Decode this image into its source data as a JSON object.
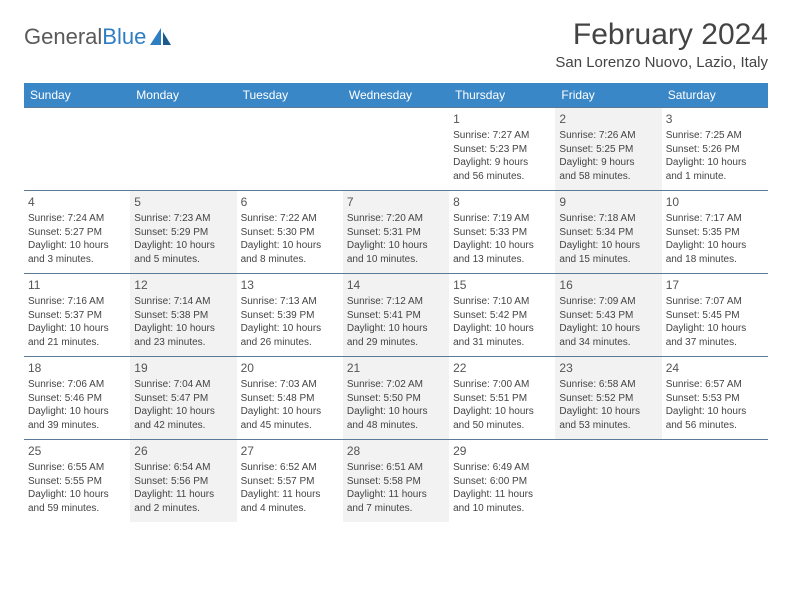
{
  "logo": {
    "text1": "General",
    "text2": "Blue"
  },
  "header": {
    "month_title": "February 2024",
    "location": "San Lorenzo Nuovo, Lazio, Italy"
  },
  "colors": {
    "header_bg": "#3a87c8",
    "alt_cell_bg": "#f2f2f2",
    "week_border": "#5a7a9a",
    "text": "#444444"
  },
  "day_names": [
    "Sunday",
    "Monday",
    "Tuesday",
    "Wednesday",
    "Thursday",
    "Friday",
    "Saturday"
  ],
  "weeks": [
    [
      null,
      null,
      null,
      null,
      {
        "num": "1",
        "sunrise": "Sunrise: 7:27 AM",
        "sunset": "Sunset: 5:23 PM",
        "day1": "Daylight: 9 hours",
        "day2": "and 56 minutes."
      },
      {
        "num": "2",
        "sunrise": "Sunrise: 7:26 AM",
        "sunset": "Sunset: 5:25 PM",
        "day1": "Daylight: 9 hours",
        "day2": "and 58 minutes."
      },
      {
        "num": "3",
        "sunrise": "Sunrise: 7:25 AM",
        "sunset": "Sunset: 5:26 PM",
        "day1": "Daylight: 10 hours",
        "day2": "and 1 minute."
      }
    ],
    [
      {
        "num": "4",
        "sunrise": "Sunrise: 7:24 AM",
        "sunset": "Sunset: 5:27 PM",
        "day1": "Daylight: 10 hours",
        "day2": "and 3 minutes."
      },
      {
        "num": "5",
        "sunrise": "Sunrise: 7:23 AM",
        "sunset": "Sunset: 5:29 PM",
        "day1": "Daylight: 10 hours",
        "day2": "and 5 minutes."
      },
      {
        "num": "6",
        "sunrise": "Sunrise: 7:22 AM",
        "sunset": "Sunset: 5:30 PM",
        "day1": "Daylight: 10 hours",
        "day2": "and 8 minutes."
      },
      {
        "num": "7",
        "sunrise": "Sunrise: 7:20 AM",
        "sunset": "Sunset: 5:31 PM",
        "day1": "Daylight: 10 hours",
        "day2": "and 10 minutes."
      },
      {
        "num": "8",
        "sunrise": "Sunrise: 7:19 AM",
        "sunset": "Sunset: 5:33 PM",
        "day1": "Daylight: 10 hours",
        "day2": "and 13 minutes."
      },
      {
        "num": "9",
        "sunrise": "Sunrise: 7:18 AM",
        "sunset": "Sunset: 5:34 PM",
        "day1": "Daylight: 10 hours",
        "day2": "and 15 minutes."
      },
      {
        "num": "10",
        "sunrise": "Sunrise: 7:17 AM",
        "sunset": "Sunset: 5:35 PM",
        "day1": "Daylight: 10 hours",
        "day2": "and 18 minutes."
      }
    ],
    [
      {
        "num": "11",
        "sunrise": "Sunrise: 7:16 AM",
        "sunset": "Sunset: 5:37 PM",
        "day1": "Daylight: 10 hours",
        "day2": "and 21 minutes."
      },
      {
        "num": "12",
        "sunrise": "Sunrise: 7:14 AM",
        "sunset": "Sunset: 5:38 PM",
        "day1": "Daylight: 10 hours",
        "day2": "and 23 minutes."
      },
      {
        "num": "13",
        "sunrise": "Sunrise: 7:13 AM",
        "sunset": "Sunset: 5:39 PM",
        "day1": "Daylight: 10 hours",
        "day2": "and 26 minutes."
      },
      {
        "num": "14",
        "sunrise": "Sunrise: 7:12 AM",
        "sunset": "Sunset: 5:41 PM",
        "day1": "Daylight: 10 hours",
        "day2": "and 29 minutes."
      },
      {
        "num": "15",
        "sunrise": "Sunrise: 7:10 AM",
        "sunset": "Sunset: 5:42 PM",
        "day1": "Daylight: 10 hours",
        "day2": "and 31 minutes."
      },
      {
        "num": "16",
        "sunrise": "Sunrise: 7:09 AM",
        "sunset": "Sunset: 5:43 PM",
        "day1": "Daylight: 10 hours",
        "day2": "and 34 minutes."
      },
      {
        "num": "17",
        "sunrise": "Sunrise: 7:07 AM",
        "sunset": "Sunset: 5:45 PM",
        "day1": "Daylight: 10 hours",
        "day2": "and 37 minutes."
      }
    ],
    [
      {
        "num": "18",
        "sunrise": "Sunrise: 7:06 AM",
        "sunset": "Sunset: 5:46 PM",
        "day1": "Daylight: 10 hours",
        "day2": "and 39 minutes."
      },
      {
        "num": "19",
        "sunrise": "Sunrise: 7:04 AM",
        "sunset": "Sunset: 5:47 PM",
        "day1": "Daylight: 10 hours",
        "day2": "and 42 minutes."
      },
      {
        "num": "20",
        "sunrise": "Sunrise: 7:03 AM",
        "sunset": "Sunset: 5:48 PM",
        "day1": "Daylight: 10 hours",
        "day2": "and 45 minutes."
      },
      {
        "num": "21",
        "sunrise": "Sunrise: 7:02 AM",
        "sunset": "Sunset: 5:50 PM",
        "day1": "Daylight: 10 hours",
        "day2": "and 48 minutes."
      },
      {
        "num": "22",
        "sunrise": "Sunrise: 7:00 AM",
        "sunset": "Sunset: 5:51 PM",
        "day1": "Daylight: 10 hours",
        "day2": "and 50 minutes."
      },
      {
        "num": "23",
        "sunrise": "Sunrise: 6:58 AM",
        "sunset": "Sunset: 5:52 PM",
        "day1": "Daylight: 10 hours",
        "day2": "and 53 minutes."
      },
      {
        "num": "24",
        "sunrise": "Sunrise: 6:57 AM",
        "sunset": "Sunset: 5:53 PM",
        "day1": "Daylight: 10 hours",
        "day2": "and 56 minutes."
      }
    ],
    [
      {
        "num": "25",
        "sunrise": "Sunrise: 6:55 AM",
        "sunset": "Sunset: 5:55 PM",
        "day1": "Daylight: 10 hours",
        "day2": "and 59 minutes."
      },
      {
        "num": "26",
        "sunrise": "Sunrise: 6:54 AM",
        "sunset": "Sunset: 5:56 PM",
        "day1": "Daylight: 11 hours",
        "day2": "and 2 minutes."
      },
      {
        "num": "27",
        "sunrise": "Sunrise: 6:52 AM",
        "sunset": "Sunset: 5:57 PM",
        "day1": "Daylight: 11 hours",
        "day2": "and 4 minutes."
      },
      {
        "num": "28",
        "sunrise": "Sunrise: 6:51 AM",
        "sunset": "Sunset: 5:58 PM",
        "day1": "Daylight: 11 hours",
        "day2": "and 7 minutes."
      },
      {
        "num": "29",
        "sunrise": "Sunrise: 6:49 AM",
        "sunset": "Sunset: 6:00 PM",
        "day1": "Daylight: 11 hours",
        "day2": "and 10 minutes."
      },
      null,
      null
    ]
  ]
}
